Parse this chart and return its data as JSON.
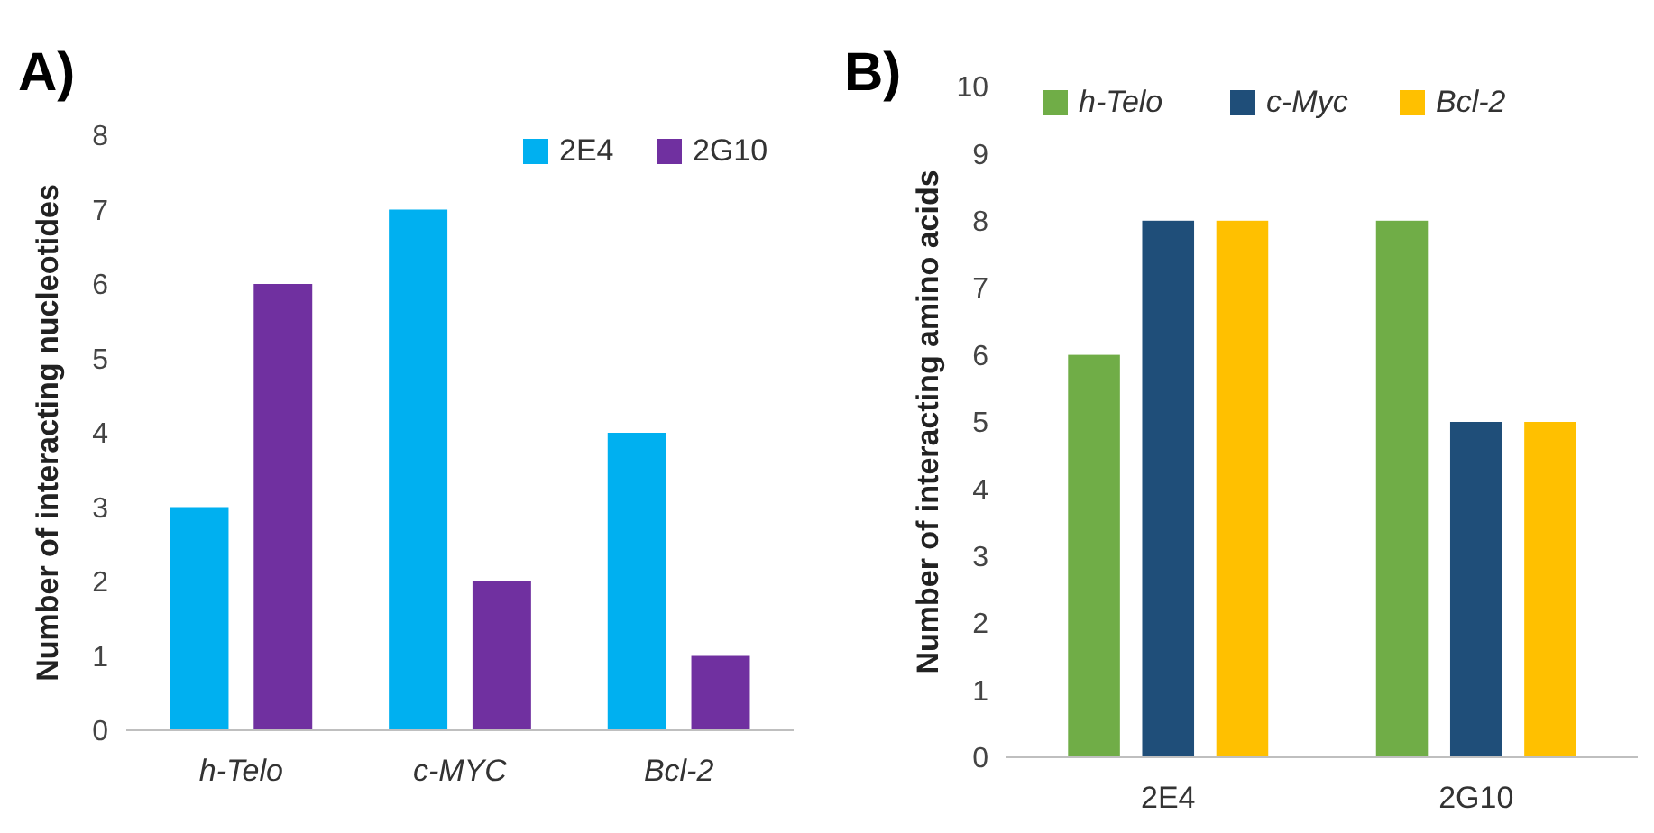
{
  "chart_data": [
    {
      "type": "bar",
      "title": "A)",
      "ylabel": "Number of interacting nucleotides",
      "categories": [
        "h-Telo",
        "c-MYC",
        "Bcl-2"
      ],
      "series": [
        {
          "name": "2E4",
          "color": "#00b0f0",
          "values": [
            3,
            7,
            4
          ]
        },
        {
          "name": "2G10",
          "color": "#7030a0",
          "values": [
            6,
            2,
            1
          ]
        }
      ],
      "ylim": [
        0,
        8
      ],
      "yticks": [
        0,
        1,
        2,
        3,
        4,
        5,
        6,
        7,
        8
      ],
      "grid": false,
      "legend": "top right"
    },
    {
      "type": "bar",
      "title": "B)",
      "ylabel": "Number of interacting amino acids",
      "categories": [
        "2E4",
        "2G10"
      ],
      "series": [
        {
          "name": "h-Telo",
          "color": "#70ad47",
          "values": [
            6,
            8
          ]
        },
        {
          "name": "c-Myc",
          "color": "#1f4e79",
          "values": [
            8,
            5
          ]
        },
        {
          "name": "Bcl-2",
          "color": "#ffc000",
          "values": [
            8,
            5
          ]
        }
      ],
      "ylim": [
        0,
        10
      ],
      "yticks": [
        0,
        1,
        2,
        3,
        4,
        5,
        6,
        7,
        8,
        9,
        10
      ],
      "grid": false,
      "legend": "top"
    }
  ]
}
